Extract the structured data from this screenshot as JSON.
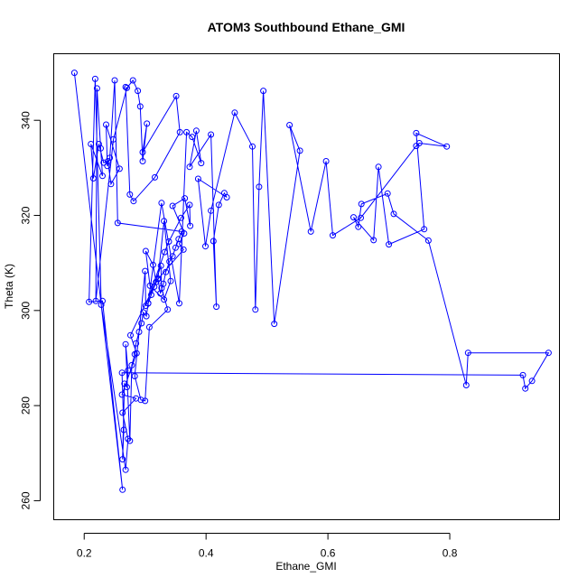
{
  "chart_data": {
    "type": "line",
    "title": "ATOM3 Southbound Ethane_GMI",
    "xlabel": "Ethane_GMI",
    "ylabel": "Theta (K)",
    "xlim": [
      0.15,
      0.98
    ],
    "ylim": [
      256,
      354
    ],
    "xticks": [
      0.2,
      0.4,
      0.6,
      0.8
    ],
    "yticks": [
      260,
      280,
      300,
      320,
      340
    ],
    "xtick_labels": [
      "0.2",
      "0.4",
      "0.6",
      "0.8"
    ],
    "ytick_labels": [
      "260",
      "280",
      "300",
      "320",
      "340"
    ],
    "marker": "open-circle",
    "series": [
      {
        "color": "#0000ff",
        "x": [
          0.184,
          0.263,
          0.23,
          0.208,
          0.218,
          0.228,
          0.268,
          0.272,
          0.263,
          0.285,
          0.262,
          0.286,
          0.276,
          0.318,
          0.313,
          0.301,
          0.308,
          0.331,
          0.342,
          0.331,
          0.321,
          0.363,
          0.356,
          0.364,
          0.345,
          0.365,
          0.374,
          0.373,
          0.359,
          0.339,
          0.332,
          0.301,
          0.3,
          0.283,
          0.293,
          0.3,
          0.307,
          0.337,
          0.327,
          0.326,
          0.305,
          0.327,
          0.356,
          0.368,
          0.377,
          0.392,
          0.384,
          0.373,
          0.408,
          0.417,
          0.412,
          0.421,
          0.43,
          0.434,
          0.387,
          0.399,
          0.408,
          0.447,
          0.476,
          0.481,
          0.487,
          0.494,
          0.512,
          0.554,
          0.537,
          0.572,
          0.597,
          0.608,
          0.654,
          0.745,
          0.75,
          0.795,
          0.745,
          0.758,
          0.7,
          0.683,
          0.675,
          0.642,
          0.65,
          0.655,
          0.698,
          0.708,
          0.765,
          0.827,
          0.83,
          0.962,
          0.935,
          0.924,
          0.92,
          0.262,
          0.265,
          0.263,
          0.266,
          0.27,
          0.272,
          0.268,
          0.275,
          0.278,
          0.283,
          0.285,
          0.29,
          0.294,
          0.297,
          0.302,
          0.305,
          0.31,
          0.315,
          0.321,
          0.325,
          0.33,
          0.334,
          0.34,
          0.345,
          0.35,
          0.355,
          0.36,
          0.255,
          0.25,
          0.242,
          0.238,
          0.236,
          0.258,
          0.244,
          0.239,
          0.232,
          0.224,
          0.215,
          0.211,
          0.23,
          0.227,
          0.221,
          0.219,
          0.248,
          0.27,
          0.28,
          0.288,
          0.292,
          0.296,
          0.303,
          0.296,
          0.351,
          0.357,
          0.316,
          0.281,
          0.275,
          0.268
        ],
        "y": [
          350.0,
          262.3,
          302.0,
          301.8,
          348.7,
          301.2,
          266.5,
          273.0,
          278.5,
          281.5,
          282.3,
          291.0,
          294.8,
          306.0,
          309.6,
          312.5,
          305.2,
          302.3,
          306.2,
          318.8,
          306.6,
          312.8,
          314.0,
          316.2,
          322.0,
          323.6,
          317.8,
          322.2,
          319.5,
          314.5,
          312.3,
          301.0,
          308.3,
          286.2,
          281.2,
          281.0,
          296.5,
          300.2,
          304.7,
          309.4,
          301.5,
          322.6,
          301.5,
          337.5,
          336.5,
          331.0,
          337.8,
          330.2,
          337.0,
          300.8,
          314.6,
          322.2,
          324.7,
          323.8,
          327.7,
          313.5,
          321.0,
          341.6,
          334.5,
          300.2,
          326.0,
          346.2,
          297.2,
          333.6,
          339.0,
          316.6,
          331.4,
          315.8,
          319.5,
          334.6,
          335.2,
          334.5,
          337.3,
          317.1,
          313.9,
          330.2,
          314.8,
          319.6,
          317.6,
          322.4,
          324.6,
          320.3,
          314.7,
          284.3,
          291.1,
          291.1,
          285.2,
          283.6,
          286.4,
          286.9,
          274.9,
          268.7,
          284.6,
          283.9,
          287.4,
          292.9,
          272.6,
          288.5,
          290.8,
          293.1,
          295.5,
          297.3,
          299.6,
          298.8,
          301.5,
          303.3,
          305.0,
          306.7,
          303.6,
          305.6,
          308.1,
          310.3,
          311.4,
          313.2,
          315.0,
          316.6,
          318.4,
          348.4,
          332.1,
          330.4,
          339.1,
          329.8,
          326.6,
          331.4,
          331.1,
          335.0,
          327.8,
          335.0,
          328.3,
          334.1,
          346.7,
          302.0,
          336.0,
          346.8,
          348.4,
          346.2,
          342.9,
          331.4,
          339.3,
          333.3,
          345.1,
          337.5,
          328.0,
          323.0,
          324.4,
          347.0
        ]
      }
    ]
  }
}
